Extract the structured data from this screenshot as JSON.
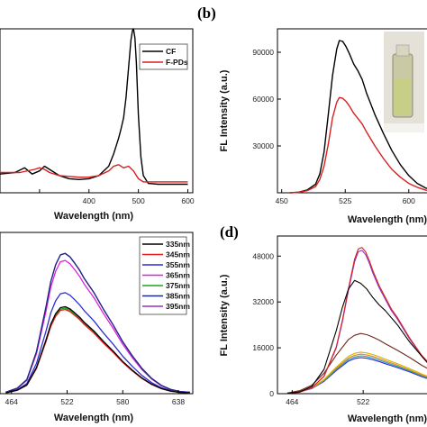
{
  "chart_data": [
    {
      "panel": "",
      "type": "line",
      "xlabel": "Wavelength (nm)",
      "ylabel": "",
      "xlim": [
        220,
        610
      ],
      "ylim": [
        -0.05,
        1.0
      ],
      "x_ticks": [
        300,
        400,
        500,
        600
      ],
      "x_tick_labels": [
        "",
        "400",
        "500",
        "600"
      ],
      "legend_position": "top-right",
      "series": [
        {
          "name": "CF",
          "color": "#000000",
          "x": [
            220,
            250,
            270,
            285,
            300,
            310,
            320,
            340,
            360,
            380,
            400,
            420,
            440,
            450,
            460,
            465,
            470,
            475,
            480,
            485,
            488,
            490,
            493,
            496,
            500,
            505,
            510,
            520,
            540,
            560,
            580,
            600
          ],
          "y": [
            0.07,
            0.08,
            0.11,
            0.07,
            0.09,
            0.12,
            0.1,
            0.06,
            0.04,
            0.035,
            0.04,
            0.06,
            0.12,
            0.2,
            0.3,
            0.36,
            0.43,
            0.56,
            0.75,
            0.93,
            0.99,
            1.0,
            0.94,
            0.78,
            0.45,
            0.18,
            0.06,
            0.01,
            0.005,
            0.005,
            0.005,
            0.005
          ]
        },
        {
          "name": "F-PDs",
          "color": "#d62020",
          "x": [
            220,
            260,
            290,
            300,
            310,
            320,
            340,
            360,
            380,
            400,
            420,
            440,
            450,
            460,
            470,
            480,
            490,
            500,
            510,
            530,
            560,
            600
          ],
          "y": [
            0.08,
            0.08,
            0.1,
            0.11,
            0.1,
            0.08,
            0.06,
            0.055,
            0.05,
            0.05,
            0.06,
            0.09,
            0.12,
            0.13,
            0.11,
            0.12,
            0.09,
            0.04,
            0.02,
            0.02,
            0.02,
            0.02
          ]
        }
      ]
    },
    {
      "panel": "(b)",
      "type": "line",
      "xlabel": "Wavelength (nm)",
      "ylabel": "FL Intensity (a.u.)",
      "xlim": [
        445,
        630
      ],
      "ylim": [
        0,
        105000
      ],
      "x_ticks": [
        450,
        525,
        600
      ],
      "x_tick_labels": [
        "450",
        "525",
        "600"
      ],
      "y_ticks": [
        30000,
        60000,
        90000
      ],
      "y_tick_labels": [
        "30000",
        "60000",
        "90000"
      ],
      "series": [
        {
          "name": "",
          "color": "#000000",
          "x": [
            460,
            470,
            480,
            490,
            495,
            500,
            505,
            510,
            515,
            518,
            522,
            526,
            530,
            535,
            540,
            545,
            550,
            560,
            570,
            580,
            590,
            600,
            610,
            620,
            630
          ],
          "y": [
            0,
            400,
            1800,
            5500,
            12000,
            26000,
            50000,
            75000,
            92000,
            97500,
            97000,
            93500,
            89000,
            82500,
            78000,
            72500,
            64000,
            50000,
            38000,
            27000,
            18000,
            11000,
            6000,
            3000,
            1500
          ]
        },
        {
          "name": "",
          "color": "#d62020",
          "x": [
            460,
            470,
            480,
            490,
            495,
            500,
            505,
            510,
            515,
            518,
            522,
            526,
            530,
            535,
            540,
            545,
            550,
            560,
            570,
            580,
            590,
            600,
            610,
            620,
            630
          ],
          "y": [
            0,
            300,
            1300,
            4000,
            8500,
            17000,
            31000,
            48000,
            58000,
            61000,
            60500,
            58500,
            55500,
            51000,
            47500,
            44000,
            39000,
            30000,
            22000,
            15000,
            10000,
            6000,
            3500,
            1700,
            800
          ]
        }
      ]
    },
    {
      "panel": "",
      "type": "line",
      "xlabel": "Wavelength (nm)",
      "ylabel": "",
      "xlim": [
        452,
        653
      ],
      "ylim": [
        0,
        1.15
      ],
      "x_ticks": [
        464,
        522,
        580,
        638
      ],
      "x_tick_labels": [
        "464",
        "522",
        "580",
        "638"
      ],
      "legend_position": "top-right",
      "series": [
        {
          "name": "335nm",
          "color": "#000000",
          "peak": 0.62
        },
        {
          "name": "345nm",
          "color": "#e02020",
          "peak": 0.6
        },
        {
          "name": "355nm",
          "color": "#2c2cd8",
          "peak": 0.72
        },
        {
          "name": "365nm",
          "color": "#e020e0",
          "peak": 0.95
        },
        {
          "name": "375nm",
          "color": "#22a022",
          "peak": 0.61
        },
        {
          "name": "385nm",
          "color": "#1a2a80",
          "peak": 1.0
        },
        {
          "name": "395nm",
          "color": "#9030c8",
          "peak": 1.0
        }
      ],
      "shape_x": [
        458,
        470,
        480,
        490,
        500,
        505,
        510,
        515,
        520,
        525,
        530,
        535,
        540,
        550,
        560,
        570,
        580,
        590,
        600,
        610,
        620,
        630,
        640,
        650
      ],
      "shape_y": [
        0.01,
        0.04,
        0.1,
        0.3,
        0.62,
        0.8,
        0.92,
        0.99,
        1.0,
        0.975,
        0.93,
        0.88,
        0.82,
        0.72,
        0.6,
        0.49,
        0.37,
        0.27,
        0.18,
        0.11,
        0.06,
        0.03,
        0.015,
        0.01
      ]
    },
    {
      "panel": "(d)",
      "type": "line",
      "xlabel": "Wavelength (nm)",
      "ylabel": "FL Intensity (a.u.)",
      "xlim": [
        452,
        580
      ],
      "ylim": [
        0,
        55000
      ],
      "x_ticks": [
        464,
        522
      ],
      "x_tick_labels": [
        "464",
        "522"
      ],
      "y_ticks": [
        0,
        16000,
        32000,
        48000
      ],
      "y_tick_labels": [
        "0",
        "16000",
        "32000",
        "48000"
      ],
      "series": [
        {
          "name": "",
          "color": "#000000",
          "x": [
            460,
            470,
            480,
            490,
            500,
            505,
            510,
            515,
            520,
            525,
            530,
            535,
            540,
            545,
            550,
            555,
            560,
            565,
            570,
            575,
            580
          ],
          "y": [
            100,
            600,
            2500,
            8500,
            22000,
            30000,
            36500,
            39500,
            38500,
            36500,
            33500,
            31000,
            29000,
            26500,
            24000,
            21000,
            18000,
            15500,
            13000,
            10500,
            8500
          ]
        },
        {
          "name": "",
          "color": "#d62020",
          "peak": 51000,
          "shape": "narrow"
        },
        {
          "name": "",
          "color": "#9030c8",
          "peak": 50000,
          "shape": "narrow"
        },
        {
          "name": "",
          "color": "#70281a",
          "peak": 21000,
          "shape": "broad"
        },
        {
          "name": "",
          "color": "#d8b000",
          "peak": 14500,
          "shape": "broad"
        },
        {
          "name": "",
          "color": "#e08020",
          "peak": 13800,
          "shape": "broad"
        },
        {
          "name": "",
          "color": "#20a0a0",
          "peak": 13200,
          "shape": "broad"
        },
        {
          "name": "",
          "color": "#2c2cd8",
          "peak": 12600,
          "shape": "broad"
        }
      ],
      "narrow_x": [
        460,
        470,
        480,
        490,
        500,
        505,
        510,
        515,
        518,
        521,
        524,
        527,
        530,
        535,
        540,
        545,
        550,
        560,
        570,
        580
      ],
      "narrow_y": [
        0.002,
        0.01,
        0.04,
        0.12,
        0.32,
        0.5,
        0.72,
        0.92,
        0.99,
        1.0,
        0.97,
        0.91,
        0.84,
        0.74,
        0.66,
        0.58,
        0.52,
        0.38,
        0.26,
        0.17
      ],
      "broad_x": [
        460,
        470,
        480,
        490,
        500,
        510,
        515,
        520,
        525,
        530,
        535,
        540,
        550,
        560,
        570,
        580
      ],
      "broad_y": [
        0.01,
        0.05,
        0.14,
        0.34,
        0.64,
        0.9,
        0.97,
        1.0,
        0.98,
        0.94,
        0.89,
        0.83,
        0.72,
        0.6,
        0.47,
        0.36
      ]
    }
  ]
}
